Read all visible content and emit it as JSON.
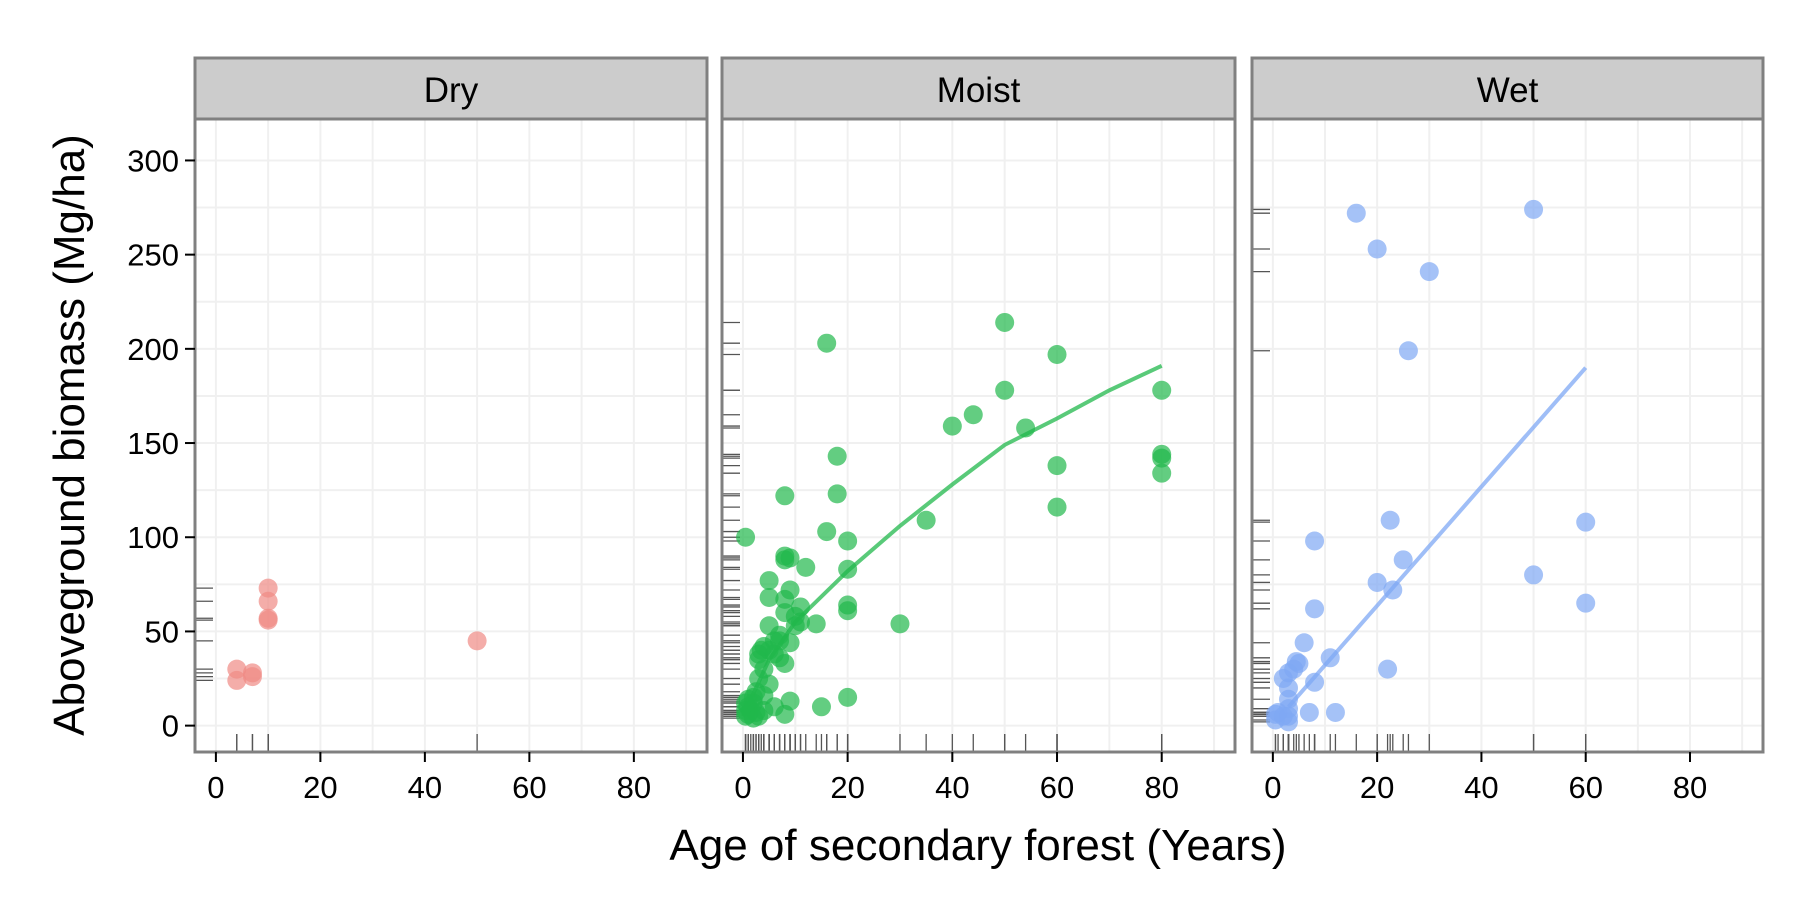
{
  "chart_data": {
    "type": "scatter",
    "xlabel": "Age of secondary forest (Years)",
    "ylabel": "Aboveground biomass (Mg/ha)",
    "xlim": [
      -4,
      94
    ],
    "ylim": [
      -14,
      322
    ],
    "x_ticks": [
      0,
      20,
      40,
      60,
      80
    ],
    "y_ticks": [
      0,
      50,
      100,
      150,
      200,
      250,
      300
    ],
    "grid": true,
    "rug": true,
    "panels": [
      {
        "label": "Dry",
        "color": "#f08a84",
        "points": [
          [
            4,
            30
          ],
          [
            4,
            24
          ],
          [
            7,
            26
          ],
          [
            7,
            28
          ],
          [
            10,
            73
          ],
          [
            10,
            66
          ],
          [
            10,
            57
          ],
          [
            10,
            56
          ],
          [
            50,
            45
          ]
        ],
        "trend": []
      },
      {
        "label": "Moist",
        "color": "#21b84c",
        "points": [
          [
            0.5,
            100
          ],
          [
            0.5,
            12
          ],
          [
            0.5,
            8
          ],
          [
            0.5,
            5
          ],
          [
            1,
            10
          ],
          [
            1,
            14
          ],
          [
            1,
            6
          ],
          [
            1.5,
            8
          ],
          [
            2,
            15
          ],
          [
            2,
            12
          ],
          [
            2,
            4
          ],
          [
            2.5,
            18
          ],
          [
            2.5,
            7
          ],
          [
            3,
            35
          ],
          [
            3,
            38
          ],
          [
            3,
            25
          ],
          [
            3,
            5
          ],
          [
            3.5,
            40
          ],
          [
            4,
            42
          ],
          [
            4,
            30
          ],
          [
            4,
            16
          ],
          [
            4,
            8
          ],
          [
            5,
            53
          ],
          [
            5,
            77
          ],
          [
            5,
            68
          ],
          [
            5,
            40
          ],
          [
            5,
            22
          ],
          [
            6,
            45
          ],
          [
            6,
            38
          ],
          [
            6,
            10
          ],
          [
            7,
            48
          ],
          [
            7,
            45
          ],
          [
            7,
            36
          ],
          [
            8,
            122
          ],
          [
            8,
            90
          ],
          [
            8,
            88
          ],
          [
            8,
            67
          ],
          [
            8,
            60
          ],
          [
            8,
            33
          ],
          [
            8,
            6
          ],
          [
            9,
            89
          ],
          [
            9,
            72
          ],
          [
            9,
            44
          ],
          [
            9,
            13
          ],
          [
            10,
            58
          ],
          [
            10,
            53
          ],
          [
            11,
            63
          ],
          [
            11,
            55
          ],
          [
            12,
            84
          ],
          [
            14,
            54
          ],
          [
            15,
            10
          ],
          [
            16,
            203
          ],
          [
            16,
            103
          ],
          [
            18,
            143
          ],
          [
            18,
            123
          ],
          [
            20,
            98
          ],
          [
            20,
            83
          ],
          [
            20,
            64
          ],
          [
            20,
            61
          ],
          [
            20,
            15
          ],
          [
            30,
            54
          ],
          [
            35,
            109
          ],
          [
            40,
            159
          ],
          [
            44,
            165
          ],
          [
            50,
            214
          ],
          [
            50,
            178
          ],
          [
            54,
            158
          ],
          [
            60,
            197
          ],
          [
            60,
            138
          ],
          [
            60,
            116
          ],
          [
            80,
            178
          ],
          [
            80,
            144
          ],
          [
            80,
            142
          ],
          [
            80,
            134
          ]
        ],
        "trend": [
          [
            0,
            5
          ],
          [
            5,
            35
          ],
          [
            10,
            55
          ],
          [
            20,
            82
          ],
          [
            30,
            106
          ],
          [
            40,
            128
          ],
          [
            50,
            149
          ],
          [
            60,
            163
          ],
          [
            70,
            178
          ],
          [
            80,
            191
          ]
        ]
      },
      {
        "label": "Wet",
        "color": "#7fa8f4",
        "points": [
          [
            0.5,
            6
          ],
          [
            0.5,
            3
          ],
          [
            1,
            7
          ],
          [
            2,
            25
          ],
          [
            2,
            5
          ],
          [
            3,
            28
          ],
          [
            3,
            20
          ],
          [
            3,
            14
          ],
          [
            3,
            9
          ],
          [
            3,
            5
          ],
          [
            3,
            2
          ],
          [
            4,
            30
          ],
          [
            4.5,
            34
          ],
          [
            5,
            33
          ],
          [
            6,
            44
          ],
          [
            7,
            7
          ],
          [
            8,
            98
          ],
          [
            8,
            62
          ],
          [
            8,
            23
          ],
          [
            11,
            36
          ],
          [
            12,
            7
          ],
          [
            16,
            272
          ],
          [
            20,
            253
          ],
          [
            20,
            76
          ],
          [
            22,
            30
          ],
          [
            22.5,
            109
          ],
          [
            23,
            72
          ],
          [
            25,
            88
          ],
          [
            26,
            199
          ],
          [
            30,
            241
          ],
          [
            50,
            274
          ],
          [
            50,
            80
          ],
          [
            60,
            108
          ],
          [
            60,
            65
          ]
        ],
        "trend": [
          [
            3,
            10
          ],
          [
            60,
            190
          ]
        ]
      }
    ]
  }
}
